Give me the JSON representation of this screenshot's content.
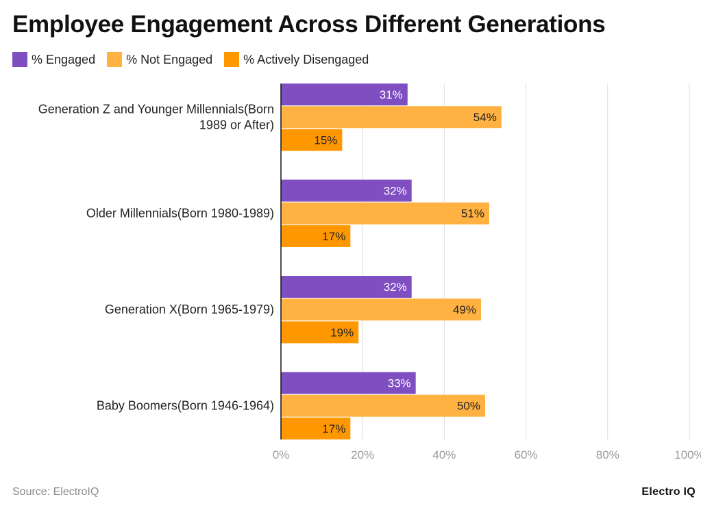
{
  "chart_data": {
    "type": "bar",
    "orientation": "horizontal",
    "title": "Employee Engagement Across Different Generations",
    "categories": [
      [
        "Generation Z and Younger Millennials(Born",
        "1989 or After)"
      ],
      [
        "Older Millennials(Born 1980-1989)"
      ],
      [
        "Generation X(Born 1965-1979)"
      ],
      [
        "Baby Boomers(Born 1946-1964)"
      ]
    ],
    "series": [
      {
        "name": "% Engaged",
        "color": "#7f4fc2",
        "label_color": "#ffffff",
        "values": [
          31,
          32,
          32,
          33
        ]
      },
      {
        "name": "% Not Engaged",
        "color": "#ffb142",
        "label_color": "#222222",
        "values": [
          54,
          51,
          49,
          50
        ]
      },
      {
        "name": "% Actively Disengaged",
        "color": "#ff9800",
        "label_color": "#222222",
        "values": [
          15,
          17,
          19,
          17
        ]
      }
    ],
    "value_suffix": "%",
    "xlim": [
      0,
      100
    ],
    "xticks": [
      0,
      20,
      40,
      60,
      80,
      100
    ],
    "xtick_labels": [
      "0%",
      "20%",
      "40%",
      "60%",
      "80%",
      "100%"
    ],
    "grid": true,
    "legend_position": "top-left",
    "xlabel": "",
    "ylabel": ""
  },
  "footer": {
    "source": "Source: ElectroIQ",
    "brand": "Electro IQ"
  }
}
